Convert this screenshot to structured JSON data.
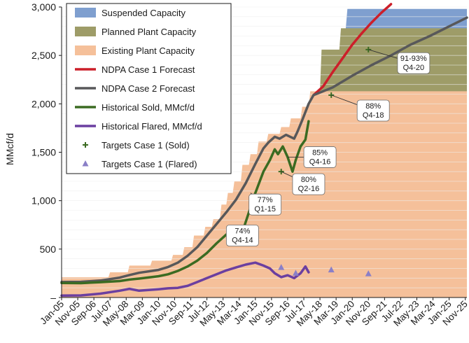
{
  "chart_data": {
    "type": "area",
    "title": "",
    "xlabel": "",
    "ylabel": "MMcf/d",
    "ylim": [
      0,
      3000
    ],
    "xlim": [
      "2005-01",
      "2025-12"
    ],
    "grid": true,
    "legend_position": "top-left",
    "y_ticks": [
      "–",
      "500",
      "1,000",
      "1,500",
      "2,000",
      "2,500",
      "3,000"
    ],
    "y_tick_values": [
      0,
      500,
      1000,
      1500,
      2000,
      2500,
      3000
    ],
    "x_ticks": [
      "Jan-05",
      "Nov-05",
      "Sep-06",
      "Jul-07",
      "May-08",
      "Mar-09",
      "Jan-10",
      "Nov-10",
      "Sep-11",
      "Jul-12",
      "May-13",
      "Mar-14",
      "Jan-15",
      "Nov-15",
      "Sep-16",
      "Jul-17",
      "May-18",
      "Mar-19",
      "Jan-20",
      "Nov-20",
      "Sep-21",
      "Jul-22",
      "May-23",
      "Mar-24",
      "Jan-25",
      "Nov-25"
    ],
    "series": [
      {
        "name": "Suspended Capacity",
        "kind": "step-area",
        "color": "#7f9fcf",
        "points": [
          [
            "2019-09-01",
            2780
          ],
          [
            "2019-10-01",
            2980
          ],
          [
            "2025-12-01",
            2980
          ]
        ]
      },
      {
        "name": "Planned Plant Capacity",
        "kind": "step-area",
        "color": "#9e9c68",
        "points": [
          [
            "2018-05-01",
            2130
          ],
          [
            "2018-06-01",
            2560
          ],
          [
            "2019-05-01",
            2560
          ],
          [
            "2019-06-01",
            2780
          ],
          [
            "2025-12-01",
            2780
          ]
        ]
      },
      {
        "name": "Existing Plant Capacity",
        "kind": "step-area",
        "color": "#f5c09a",
        "points": [
          [
            "2005-01-01",
            210
          ],
          [
            "2007-06-01",
            210
          ],
          [
            "2007-07-01",
            260
          ],
          [
            "2008-06-01",
            260
          ],
          [
            "2008-07-01",
            330
          ],
          [
            "2009-08-01",
            330
          ],
          [
            "2009-09-01",
            380
          ],
          [
            "2010-09-01",
            380
          ],
          [
            "2010-10-01",
            440
          ],
          [
            "2011-04-01",
            440
          ],
          [
            "2011-05-01",
            520
          ],
          [
            "2011-10-01",
            520
          ],
          [
            "2011-11-01",
            640
          ],
          [
            "2012-05-01",
            640
          ],
          [
            "2012-06-01",
            730
          ],
          [
            "2012-10-01",
            730
          ],
          [
            "2012-11-01",
            810
          ],
          [
            "2013-03-01",
            810
          ],
          [
            "2013-04-01",
            960
          ],
          [
            "2013-07-01",
            960
          ],
          [
            "2013-08-01",
            1080
          ],
          [
            "2013-11-01",
            1080
          ],
          [
            "2013-12-01",
            1200
          ],
          [
            "2014-04-01",
            1200
          ],
          [
            "2014-05-01",
            1370
          ],
          [
            "2014-09-01",
            1370
          ],
          [
            "2014-10-01",
            1480
          ],
          [
            "2015-02-01",
            1480
          ],
          [
            "2015-03-01",
            1610
          ],
          [
            "2015-08-01",
            1610
          ],
          [
            "2015-09-01",
            1690
          ],
          [
            "2016-04-01",
            1690
          ],
          [
            "2016-05-01",
            1760
          ],
          [
            "2016-10-01",
            1760
          ],
          [
            "2016-11-01",
            1850
          ],
          [
            "2017-05-01",
            1850
          ],
          [
            "2017-06-01",
            1970
          ],
          [
            "2017-10-01",
            1970
          ],
          [
            "2017-11-01",
            2130
          ],
          [
            "2025-12-01",
            2130
          ]
        ]
      },
      {
        "name": "NDPA Case 1 Forecast",
        "kind": "line",
        "color": "#cc1f2a",
        "width": 3.5,
        "points": [
          [
            "2018-01-01",
            2090
          ],
          [
            "2018-07-01",
            2180
          ],
          [
            "2019-01-01",
            2330
          ],
          [
            "2019-07-01",
            2470
          ],
          [
            "2020-01-01",
            2610
          ],
          [
            "2020-07-01",
            2730
          ],
          [
            "2021-01-01",
            2840
          ],
          [
            "2021-07-01",
            2940
          ],
          [
            "2022-01-01",
            3030
          ]
        ]
      },
      {
        "name": "NDPA Case 2 Forecast",
        "kind": "line",
        "color": "#58585a",
        "width": 3.5,
        "points": [
          [
            "2005-01-01",
            160
          ],
          [
            "2006-01-01",
            162
          ],
          [
            "2007-01-01",
            175
          ],
          [
            "2008-01-01",
            205
          ],
          [
            "2008-07-01",
            232
          ],
          [
            "2009-01-01",
            255
          ],
          [
            "2010-01-01",
            285
          ],
          [
            "2010-07-01",
            315
          ],
          [
            "2011-01-01",
            360
          ],
          [
            "2011-07-01",
            430
          ],
          [
            "2012-01-01",
            520
          ],
          [
            "2012-07-01",
            640
          ],
          [
            "2013-01-01",
            760
          ],
          [
            "2013-07-01",
            880
          ],
          [
            "2014-01-01",
            1010
          ],
          [
            "2014-07-01",
            1180
          ],
          [
            "2015-01-01",
            1380
          ],
          [
            "2015-06-01",
            1540
          ],
          [
            "2015-09-01",
            1600
          ],
          [
            "2016-01-01",
            1660
          ],
          [
            "2016-04-01",
            1640
          ],
          [
            "2016-08-01",
            1680
          ],
          [
            "2017-01-01",
            1640
          ],
          [
            "2017-03-01",
            1710
          ],
          [
            "2017-06-01",
            1830
          ],
          [
            "2017-10-01",
            2000
          ],
          [
            "2018-01-01",
            2090
          ],
          [
            "2019-01-01",
            2170
          ],
          [
            "2020-01-01",
            2290
          ],
          [
            "2021-01-01",
            2400
          ],
          [
            "2022-01-01",
            2500
          ],
          [
            "2023-01-01",
            2610
          ],
          [
            "2024-01-01",
            2700
          ],
          [
            "2025-01-01",
            2800
          ],
          [
            "2025-12-01",
            2890
          ]
        ]
      },
      {
        "name": "Historical Sold, MMcf/d",
        "kind": "line",
        "color": "#3b6b22",
        "width": 3.5,
        "points": [
          [
            "2005-01-01",
            150
          ],
          [
            "2006-01-01",
            148
          ],
          [
            "2007-01-01",
            158
          ],
          [
            "2008-01-01",
            170
          ],
          [
            "2008-07-01",
            185
          ],
          [
            "2009-01-01",
            195
          ],
          [
            "2010-01-01",
            220
          ],
          [
            "2010-07-01",
            240
          ],
          [
            "2011-01-01",
            275
          ],
          [
            "2011-07-01",
            320
          ],
          [
            "2012-01-01",
            380
          ],
          [
            "2012-07-01",
            460
          ],
          [
            "2013-01-01",
            560
          ],
          [
            "2013-07-01",
            650
          ],
          [
            "2014-01-01",
            730
          ],
          [
            "2014-04-01",
            620
          ],
          [
            "2014-07-01",
            780
          ],
          [
            "2015-01-01",
            1080
          ],
          [
            "2015-06-01",
            1300
          ],
          [
            "2015-10-01",
            1420
          ],
          [
            "2016-01-01",
            1530
          ],
          [
            "2016-03-01",
            1480
          ],
          [
            "2016-06-01",
            1560
          ],
          [
            "2016-09-01",
            1450
          ],
          [
            "2016-12-01",
            1300
          ],
          [
            "2017-02-01",
            1420
          ],
          [
            "2017-05-01",
            1560
          ],
          [
            "2017-08-01",
            1630
          ],
          [
            "2017-10-01",
            1820
          ]
        ]
      },
      {
        "name": "Historical Flared, MMcf/d",
        "kind": "line",
        "color": "#6b3fa0",
        "width": 3.5,
        "points": [
          [
            "2005-01-01",
            20
          ],
          [
            "2006-01-01",
            22
          ],
          [
            "2007-01-01",
            40
          ],
          [
            "2008-01-01",
            70
          ],
          [
            "2008-07-01",
            90
          ],
          [
            "2009-01-01",
            70
          ],
          [
            "2010-01-01",
            85
          ],
          [
            "2010-07-01",
            95
          ],
          [
            "2011-01-01",
            100
          ],
          [
            "2011-07-01",
            120
          ],
          [
            "2012-01-01",
            160
          ],
          [
            "2012-07-01",
            200
          ],
          [
            "2013-01-01",
            240
          ],
          [
            "2013-07-01",
            280
          ],
          [
            "2014-01-01",
            310
          ],
          [
            "2014-07-01",
            340
          ],
          [
            "2015-01-01",
            360
          ],
          [
            "2015-06-01",
            330
          ],
          [
            "2015-10-01",
            300
          ],
          [
            "2016-01-01",
            250
          ],
          [
            "2016-05-01",
            210
          ],
          [
            "2016-09-01",
            230
          ],
          [
            "2017-01-01",
            200
          ],
          [
            "2017-05-01",
            250
          ],
          [
            "2017-08-01",
            320
          ],
          [
            "2017-10-01",
            260
          ]
        ]
      },
      {
        "name": "Targets Case 1 (Sold)",
        "kind": "marker-plus",
        "color": "#3b6b22",
        "points": [
          [
            "2016-05-01",
            1300
          ],
          [
            "2018-12-01",
            2090
          ],
          [
            "2020-11-01",
            2560
          ]
        ]
      },
      {
        "name": "Targets Case 1 (Flared)",
        "kind": "marker-triangle",
        "color": "#8a7fc7",
        "points": [
          [
            "2016-05-01",
            310
          ],
          [
            "2017-02-01",
            250
          ],
          [
            "2018-12-01",
            285
          ],
          [
            "2020-11-01",
            245
          ]
        ]
      }
    ],
    "annotations": [
      {
        "lines": [
          "91-93%",
          "Q4-20"
        ],
        "target": "2020-11-01",
        "target_y": 2560,
        "anchor": "2023-03-01",
        "anchor_y": 2420
      },
      {
        "lines": [
          "88%",
          "Q4-18"
        ],
        "target": "2018-12-01",
        "target_y": 2090,
        "anchor": "2021-02-01",
        "anchor_y": 1930
      },
      {
        "lines": [
          "85%",
          "Q4-16"
        ],
        "target": "2016-09-01",
        "target_y": 1450,
        "anchor": "2018-05-01",
        "anchor_y": 1450
      },
      {
        "lines": [
          "80%",
          "Q2-16"
        ],
        "target": "2016-05-01",
        "target_y": 1300,
        "anchor": "2017-10-01",
        "anchor_y": 1170
      },
      {
        "lines": [
          "77%",
          "Q1-15"
        ],
        "target": "2014-10-01",
        "target_y": 1080,
        "anchor": "2015-07-01",
        "anchor_y": 960
      },
      {
        "lines": [
          "74%",
          "Q4-14"
        ],
        "target": "2014-04-01",
        "target_y": 730,
        "anchor": "2014-05-01",
        "anchor_y": 640
      }
    ]
  }
}
